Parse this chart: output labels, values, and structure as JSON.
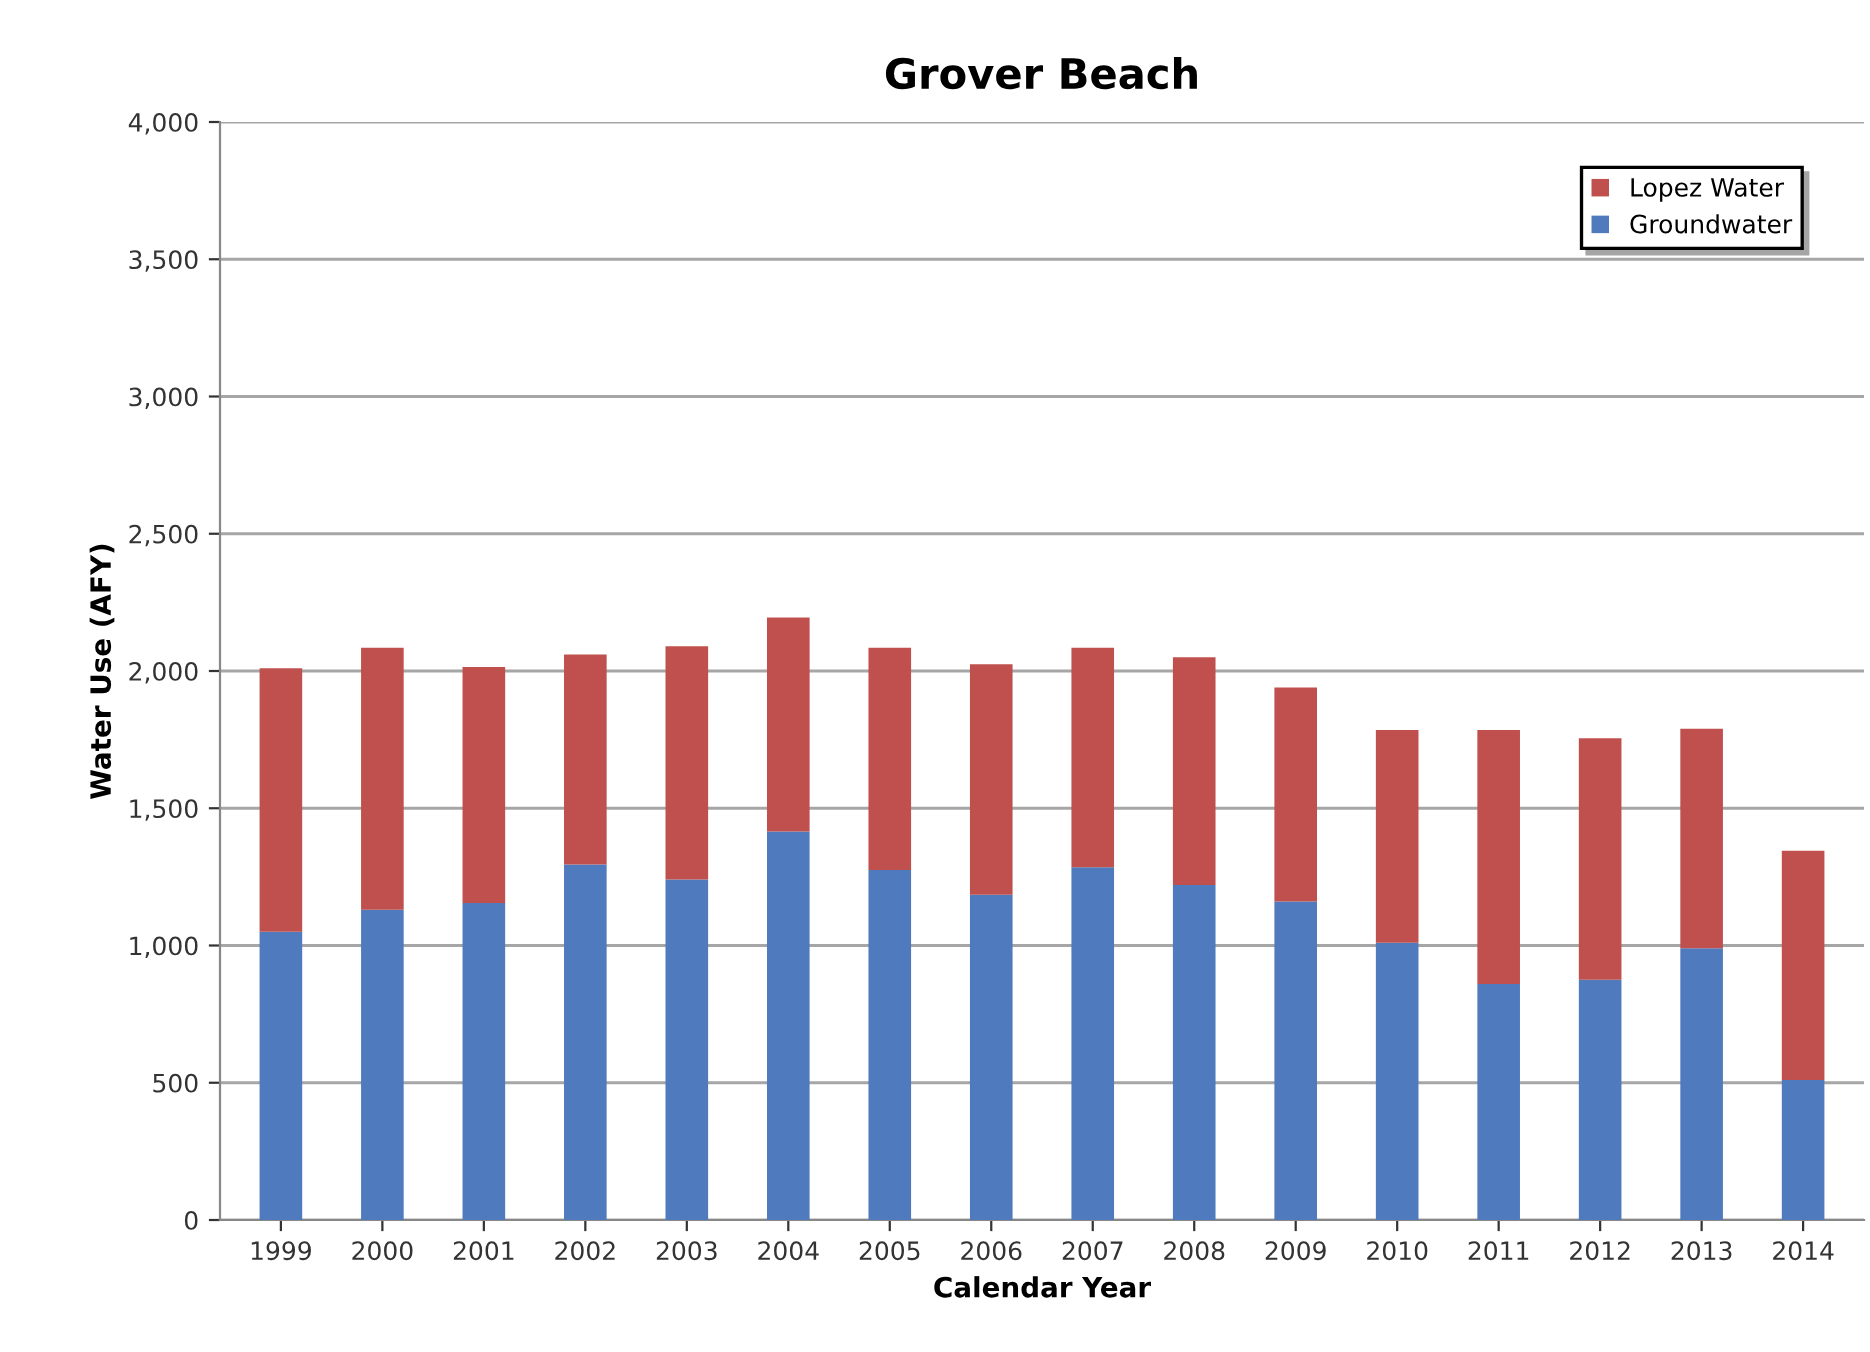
{
  "chart_data": {
    "type": "bar",
    "title": "Grover Beach",
    "xlabel": "Calendar Year",
    "ylabel": "Water Use (AFY)",
    "categories": [
      "1999",
      "2000",
      "2001",
      "2002",
      "2003",
      "2004",
      "2005",
      "2006",
      "2007",
      "2008",
      "2009",
      "2010",
      "2011",
      "2012",
      "2013",
      "2014"
    ],
    "stacked": true,
    "series": [
      {
        "name": "Groundwater",
        "color": "#4f7bbe",
        "values": [
          1050,
          1130,
          1155,
          1295,
          1240,
          1415,
          1275,
          1185,
          1285,
          1220,
          1160,
          1010,
          860,
          875,
          990,
          510
        ]
      },
      {
        "name": "Lopez Water",
        "color": "#c0504d",
        "values": [
          960,
          955,
          860,
          765,
          850,
          780,
          810,
          840,
          800,
          830,
          780,
          775,
          925,
          880,
          800,
          835
        ]
      }
    ],
    "ylim": [
      0,
      4000
    ],
    "yticks": [
      0,
      500,
      {
        "value": 1000,
        "label": "1,000"
      },
      {
        "value": 1500,
        "label": "1,500"
      },
      {
        "value": 2000,
        "label": "2,000"
      },
      {
        "value": 2500,
        "label": "2,500"
      },
      {
        "value": 3000,
        "label": "3,000"
      },
      {
        "value": 3500,
        "label": "3,500"
      },
      {
        "value": 4000,
        "label": "4,000"
      }
    ],
    "grid": "y",
    "legend": "top right"
  }
}
